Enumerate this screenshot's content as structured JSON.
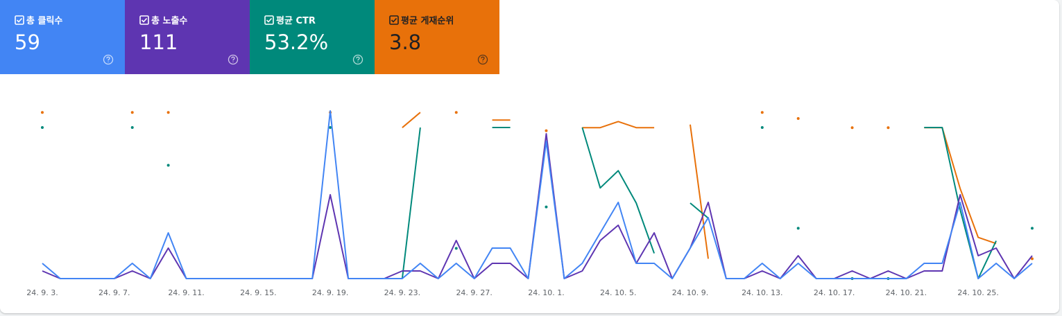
{
  "chart_data": {
    "type": "line",
    "categories": [
      "24. 9. 3.",
      null,
      null,
      null,
      "24. 9. 7.",
      null,
      null,
      null,
      "24. 9. 11.",
      null,
      null,
      null,
      "24. 9. 15.",
      null,
      null,
      null,
      "24. 9. 19.",
      null,
      null,
      null,
      "24. 9. 23.",
      null,
      null,
      null,
      "24. 9. 27.",
      null,
      null,
      null,
      "24. 10. 1.",
      null,
      null,
      null,
      "24. 10. 5.",
      null,
      null,
      null,
      "24. 10. 9.",
      null,
      null,
      null,
      "24. 10. 13.",
      null,
      null,
      null,
      "24. 10. 17.",
      null,
      null,
      null,
      "24. 10. 21.",
      null,
      null,
      null,
      "24. 10. 25.",
      null,
      null,
      null
    ],
    "series": [
      {
        "name": "총 클릭수",
        "color": "#4285f4",
        "total": 59,
        "ylim": [
          0,
          11
        ],
        "values": [
          1,
          0,
          0,
          0,
          0,
          1,
          0,
          3,
          0,
          0,
          0,
          0,
          0,
          0,
          0,
          0,
          11,
          0,
          0,
          0,
          0,
          1,
          0,
          1,
          0,
          2,
          2,
          0,
          9,
          0,
          1,
          3,
          5,
          1,
          1,
          0,
          2,
          4,
          0,
          0,
          1,
          0,
          1,
          0,
          0,
          0,
          0,
          0,
          0,
          1,
          1,
          5,
          0,
          1,
          0,
          1
        ]
      },
      {
        "name": "총 노출수",
        "color": "#5e35b1",
        "total": 111,
        "ylim": [
          0,
          22
        ],
        "values": [
          1,
          0,
          0,
          0,
          0,
          1,
          0,
          4,
          0,
          0,
          0,
          0,
          0,
          0,
          0,
          0,
          11,
          0,
          0,
          0,
          1,
          1,
          0,
          5,
          0,
          2,
          2,
          0,
          19,
          0,
          1,
          5,
          7,
          2,
          6,
          0,
          4,
          10,
          0,
          0,
          1,
          0,
          3,
          0,
          0,
          1,
          0,
          1,
          0,
          1,
          1,
          11,
          3,
          4,
          0,
          3
        ]
      },
      {
        "name": "평균 CTR",
        "color": "#00897b",
        "total": 53.2,
        "total_label": "53.2%",
        "ylim": [
          0,
          111
        ],
        "values": [
          100,
          null,
          null,
          null,
          null,
          100,
          null,
          75,
          null,
          null,
          null,
          null,
          null,
          null,
          null,
          null,
          100,
          null,
          null,
          null,
          0,
          100,
          null,
          20,
          null,
          100,
          100,
          null,
          47.4,
          null,
          100,
          60,
          71.4,
          50,
          16.7,
          null,
          50,
          40,
          null,
          null,
          100,
          null,
          33.3,
          null,
          null,
          0,
          null,
          0,
          null,
          100,
          100,
          45.5,
          0,
          25,
          null,
          33.3
        ]
      },
      {
        "name": "평균 게재순위",
        "color": "#e8710a",
        "total": 3.8,
        "ylim": [
          11.9,
          0.9
        ],
        "values": [
          1,
          null,
          null,
          null,
          null,
          1,
          null,
          1,
          null,
          null,
          null,
          null,
          null,
          null,
          null,
          null,
          1,
          null,
          null,
          null,
          2,
          1,
          null,
          1,
          null,
          1.5,
          1.5,
          null,
          2.2,
          null,
          2,
          2,
          1.6,
          2,
          2,
          null,
          1.8,
          10.6,
          null,
          null,
          1,
          null,
          1.4,
          null,
          null,
          2,
          null,
          2,
          null,
          2,
          2,
          6,
          9.2,
          9.6,
          null,
          10.6
        ]
      }
    ]
  }
}
